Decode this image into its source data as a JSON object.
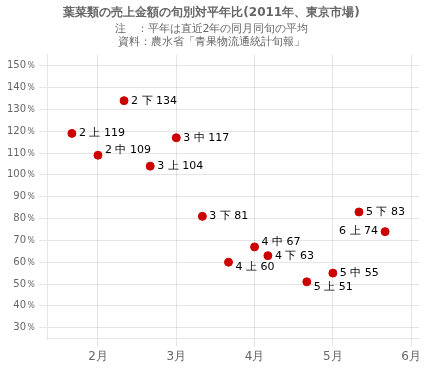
{
  "chart_data": {
    "type": "scatter",
    "title": "葉菜類の売上金額の旬別対平年比(2011年、東京市場)",
    "subtitle": [
      "注　：平年は直近2年の同月同旬の平均",
      "資料：農水省「青果物流通統計旬報」"
    ],
    "x": [
      1.667,
      2.0,
      2.333,
      2.667,
      3.0,
      3.333,
      3.667,
      4.0,
      4.17,
      4.667,
      5.0,
      5.333,
      5.667
    ],
    "values": [
      119,
      109,
      134,
      104,
      117,
      81,
      60,
      67,
      63,
      51,
      55,
      83,
      74
    ],
    "value_labels": [
      "2 上 119",
      "2 中 109",
      "2 下 134",
      "3 上 104",
      "3 中 117",
      "3 下 81",
      "4 上 60",
      "4 中 67",
      "4 下 63",
      "5 上 51",
      "5 中 55",
      "5 下 83",
      "6 上 74"
    ],
    "data_labels": true,
    "color": "#cc0000",
    "marker": "circle",
    "xlim": [
      1.35,
      6.1
    ],
    "xticks": [
      {
        "value": 2,
        "label": "2月"
      },
      {
        "value": 3,
        "label": "3月"
      },
      {
        "value": 4,
        "label": "4月"
      },
      {
        "value": 5,
        "label": "5月"
      },
      {
        "value": 6,
        "label": "6月"
      }
    ],
    "ylim": [
      25,
      155
    ],
    "yticks": [
      {
        "value": 30,
        "label": "30％"
      },
      {
        "value": 40,
        "label": "40％"
      },
      {
        "value": 50,
        "label": "50％"
      },
      {
        "value": 60,
        "label": "60％"
      },
      {
        "value": 70,
        "label": "70％"
      },
      {
        "value": 80,
        "label": "80％"
      },
      {
        "value": 90,
        "label": "90％"
      },
      {
        "value": 100,
        "label": "100％"
      },
      {
        "value": 110,
        "label": "110％"
      },
      {
        "value": 120,
        "label": "120％"
      },
      {
        "value": 130,
        "label": "130％"
      },
      {
        "value": 140,
        "label": "140％"
      },
      {
        "value": 150,
        "label": "150％"
      }
    ],
    "grid": true
  }
}
